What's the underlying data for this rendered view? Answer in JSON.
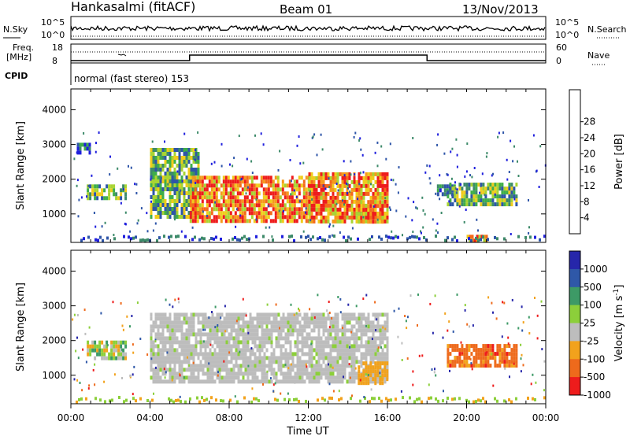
{
  "header": {
    "station": "Hankasalmi (fitACF)",
    "beam": "Beam 01",
    "date": "13/Nov/2013"
  },
  "noise_panel": {
    "left_label": "N.Sky",
    "right_label": "N.Search",
    "left_ticks": [
      "10^5",
      "10^0"
    ],
    "right_ticks": [
      "10^5",
      "10^0"
    ]
  },
  "freq_panel": {
    "left_label_1": "Freq.",
    "left_label_2": "[MHz]",
    "right_label": "Nave",
    "left_ticks": [
      "18",
      "8"
    ],
    "right_ticks": [
      "60",
      "0"
    ],
    "freq_step_times_h": [
      6.0,
      18.0
    ]
  },
  "cpid": {
    "label": "CPID",
    "text": "normal (fast stereo) 153"
  },
  "x_axis": {
    "title": "Time UT",
    "tick_labels": [
      "00:00",
      "04:00",
      "08:00",
      "12:00",
      "16:00",
      "20:00",
      "00:00"
    ],
    "range_h": [
      0,
      24
    ]
  },
  "chart_data": [
    {
      "type": "heatmap",
      "name": "power",
      "ylabel": "Slant Range [km]",
      "yticks": [
        "1000",
        "2000",
        "3000",
        "4000"
      ],
      "ylim": [
        180,
        4600
      ],
      "colorbar": {
        "label": "Power [dB]",
        "ticks": [
          "4",
          "8",
          "12",
          "16",
          "20",
          "24",
          "28"
        ],
        "range": [
          0,
          32
        ],
        "colors": [
          "#1f1fdd",
          "#2e55a8",
          "#3d8a6a",
          "#3fae4a",
          "#a8d433",
          "#f0cc1c",
          "#f59a1c",
          "#f46a1c",
          "#ee1c1c"
        ]
      },
      "regions": [
        {
          "t": [
            0.3,
            1.0
          ],
          "r": [
            2800,
            3050
          ],
          "level": "weak"
        },
        {
          "t": [
            0.8,
            2.8
          ],
          "r": [
            1500,
            1850
          ],
          "level": "moderate"
        },
        {
          "t": [
            4.0,
            6.5
          ],
          "r": [
            900,
            2900
          ],
          "level": "moderate"
        },
        {
          "t": [
            6.0,
            12.0
          ],
          "r": [
            800,
            2100
          ],
          "level": "strong"
        },
        {
          "t": [
            12.0,
            16.0
          ],
          "r": [
            800,
            2200
          ],
          "level": "strong"
        },
        {
          "t": [
            14.5,
            15.8
          ],
          "r": [
            800,
            1400
          ],
          "level": "strong"
        },
        {
          "t": [
            18.5,
            19.5
          ],
          "r": [
            1600,
            1850
          ],
          "level": "weak"
        },
        {
          "t": [
            19.0,
            22.5
          ],
          "r": [
            1300,
            1900
          ],
          "level": "moderate"
        },
        {
          "t": [
            20.0,
            21.0
          ],
          "r": [
            250,
            400
          ],
          "level": "strong"
        }
      ]
    },
    {
      "type": "heatmap",
      "name": "velocity",
      "ylabel": "Slant Range [km]",
      "yticks": [
        "1000",
        "2000",
        "3000",
        "4000"
      ],
      "ylim": [
        180,
        4600
      ],
      "colorbar": {
        "label": "Velocity [m s^-1]",
        "ticks": [
          "1000",
          "500",
          "100",
          "25",
          "-25",
          "-100",
          "-500",
          "-1000"
        ],
        "colors": [
          "#2626aa",
          "#2f58a8",
          "#3d9a66",
          "#8ccf3a",
          "#bdbdbd",
          "#f2a21c",
          "#ee6a1c",
          "#ee1c1c"
        ]
      },
      "regions": [
        {
          "t": [
            0.8,
            2.8
          ],
          "r": [
            1500,
            2000
          ],
          "velocity": "mixed"
        },
        {
          "t": [
            4.0,
            16.0
          ],
          "r": [
            800,
            2800
          ],
          "velocity": "ground scatter (grey)"
        },
        {
          "t": [
            14.5,
            16.0
          ],
          "r": [
            800,
            1400
          ],
          "velocity": "-100"
        },
        {
          "t": [
            19.0,
            22.5
          ],
          "r": [
            1300,
            1900
          ],
          "velocity": "-500"
        }
      ]
    }
  ]
}
